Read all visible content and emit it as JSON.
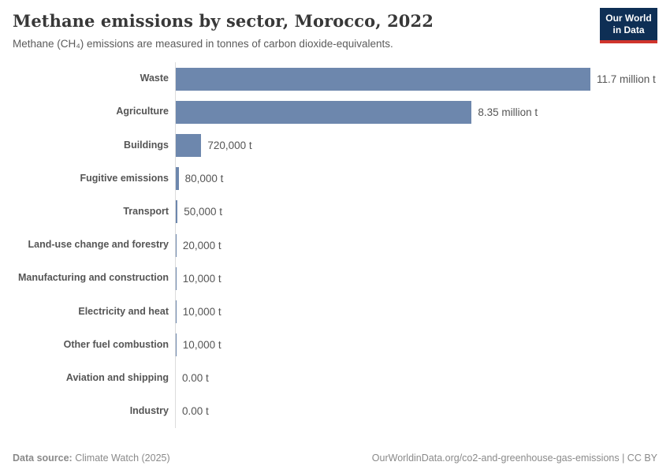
{
  "header": {
    "title": "Methane emissions by sector, Morocco, 2022",
    "subtitle": "Methane (CH₄) emissions are measured in tonnes of carbon dioxide-equivalents.",
    "logo": {
      "line1": "Our World",
      "line2": "in Data"
    }
  },
  "colors": {
    "bar": "#6d87ad",
    "logo_background": "#0e2f55",
    "logo_stripe": "#d0342c",
    "axis_line": "#dcdcdc"
  },
  "chart_data": {
    "type": "bar",
    "orientation": "horizontal",
    "title": "Methane emissions by sector, Morocco, 2022",
    "unit": "t",
    "xlim": [
      0,
      11700000
    ],
    "grid": false,
    "legend": "none",
    "categories": [
      "Waste",
      "Agriculture",
      "Buildings",
      "Fugitive emissions",
      "Transport",
      "Land-use change and forestry",
      "Manufacturing and construction",
      "Electricity and heat",
      "Other fuel combustion",
      "Aviation and shipping",
      "Industry"
    ],
    "values": [
      11700000,
      8350000,
      720000,
      80000,
      50000,
      20000,
      10000,
      10000,
      10000,
      0,
      0
    ],
    "value_labels": [
      "11.7 million t",
      "8.35 million t",
      "720,000 t",
      "80,000 t",
      "50,000 t",
      "20,000 t",
      "10,000 t",
      "10,000 t",
      "10,000 t",
      "0.00 t",
      "0.00 t"
    ]
  },
  "footer": {
    "datasource_label": "Data source:",
    "datasource_value": "Climate Watch (2025)",
    "link": "OurWorldinData.org/co2-and-greenhouse-gas-emissions | CC BY"
  }
}
